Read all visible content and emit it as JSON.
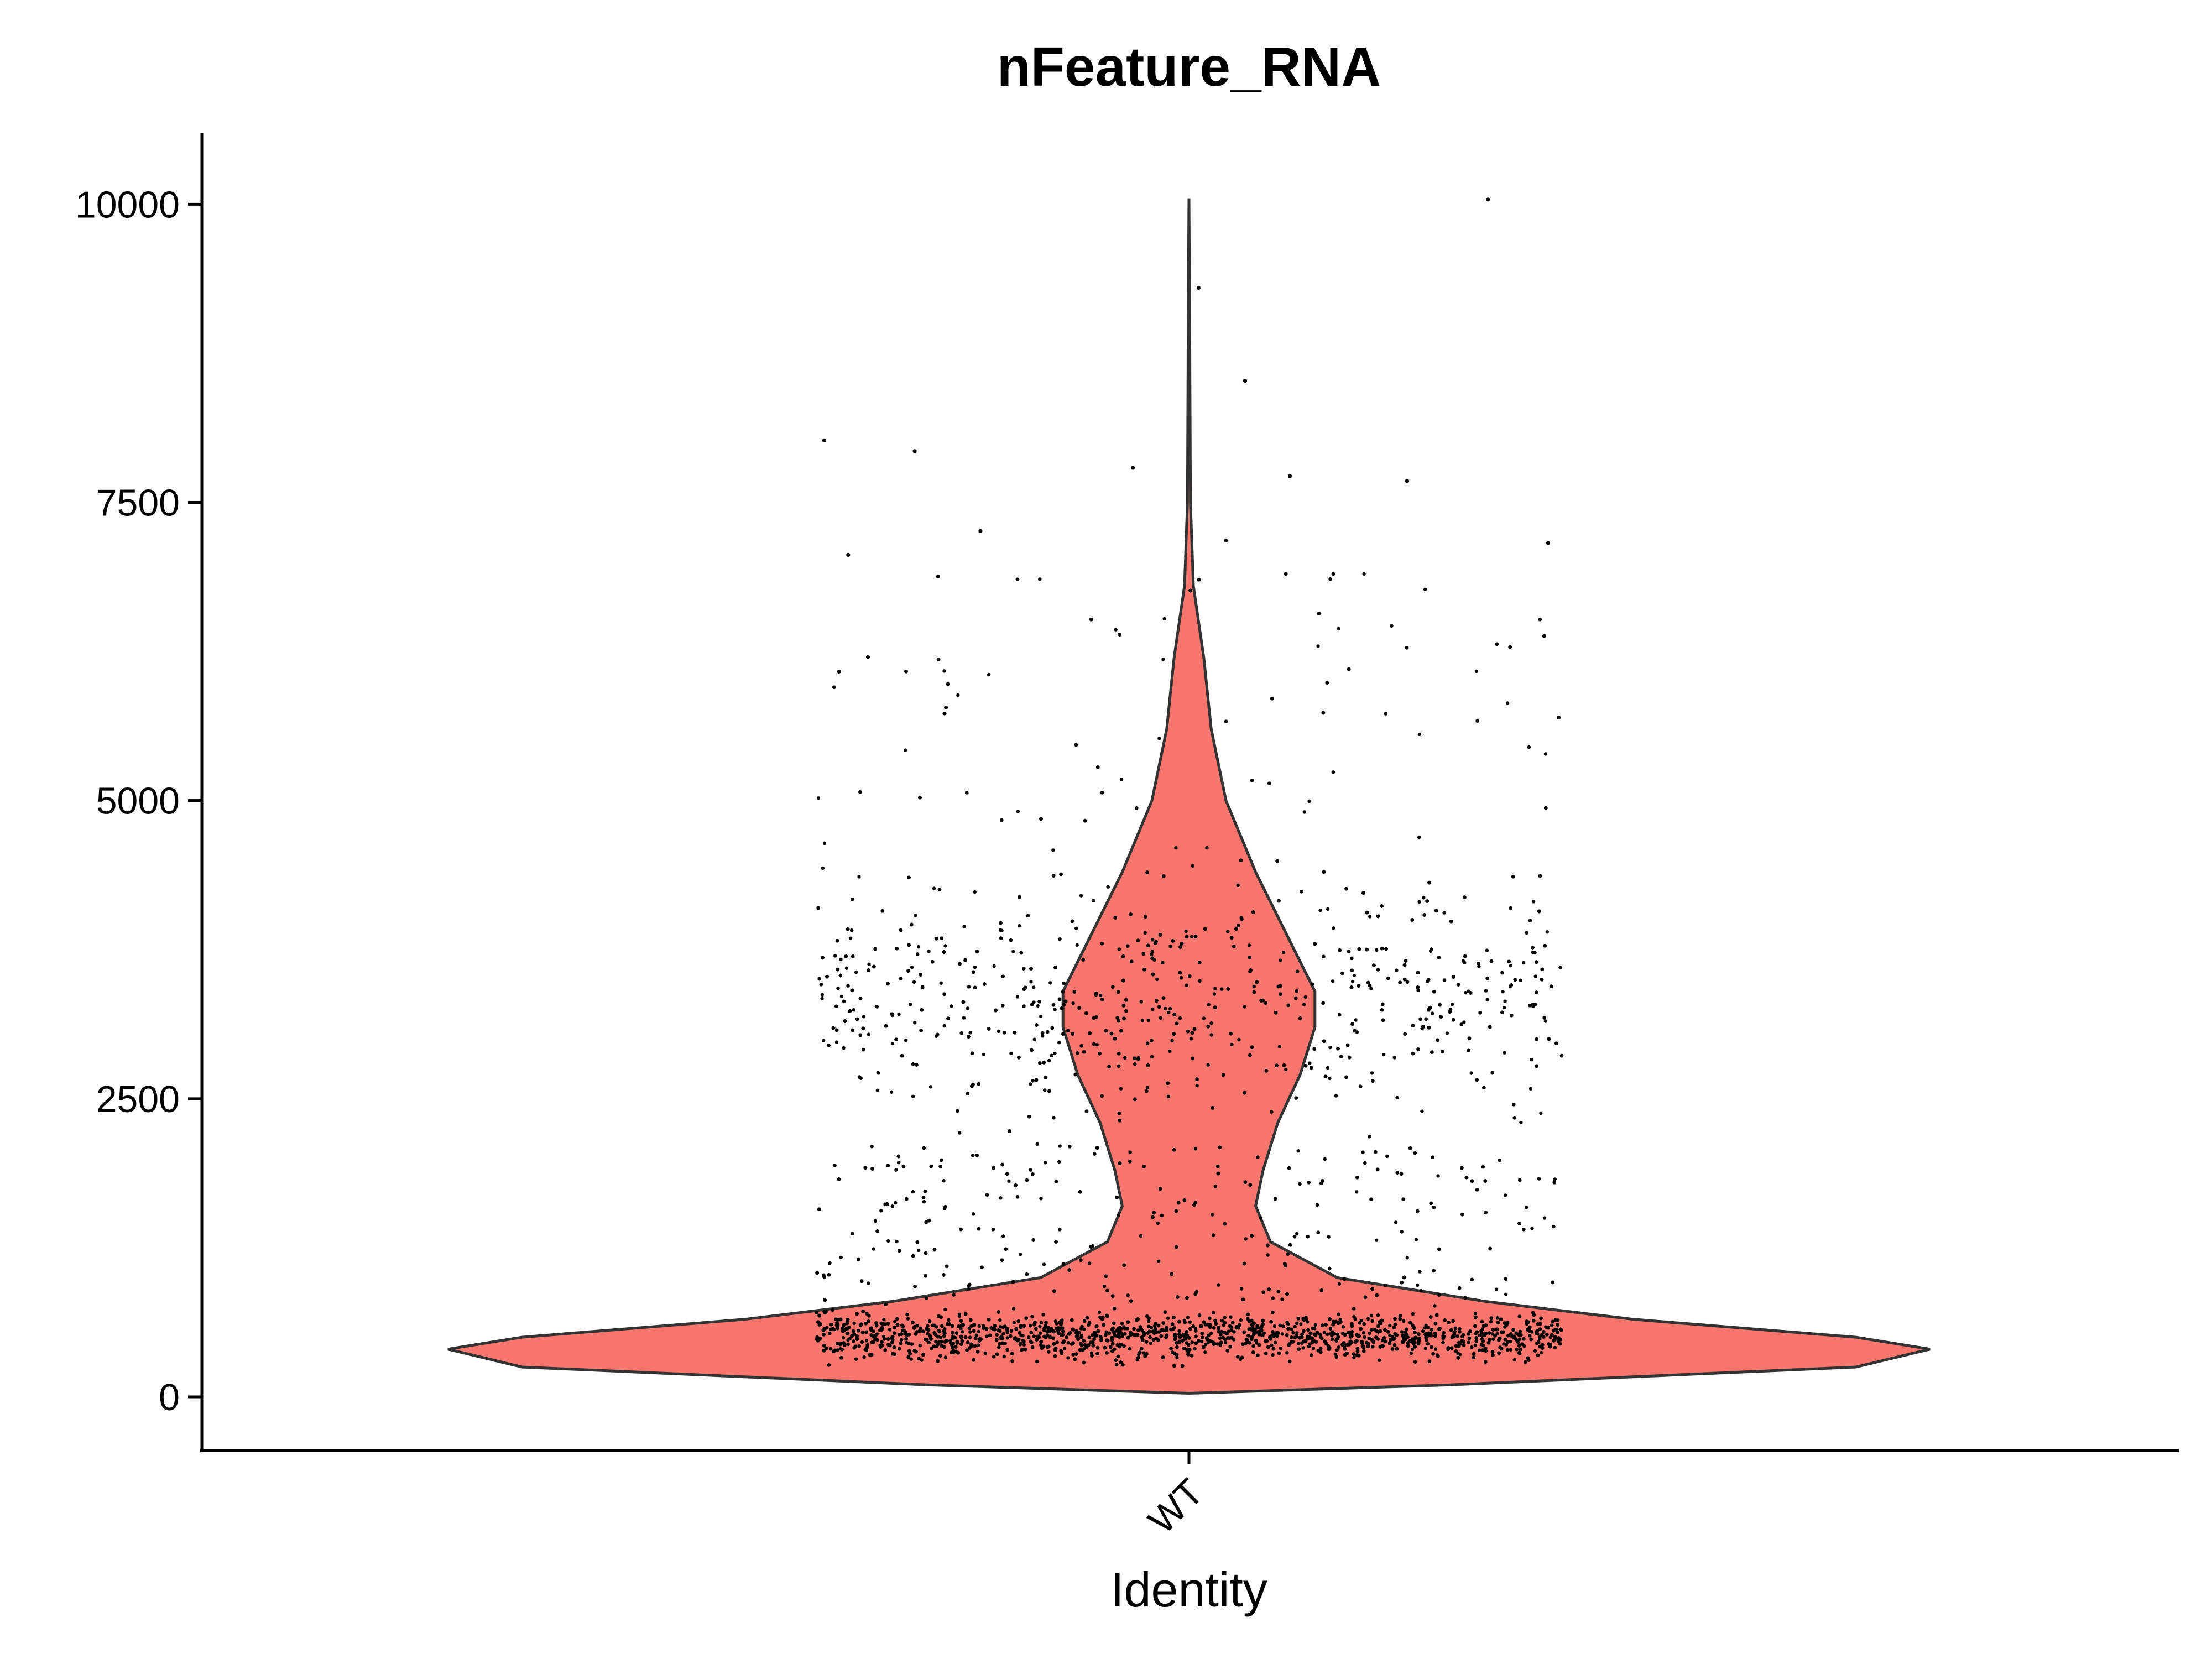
{
  "chart_data": {
    "type": "violin",
    "title": "nFeature_RNA",
    "xlabel": "Identity",
    "ylabel": "",
    "categories": [
      "WT"
    ],
    "ylim": [
      -450,
      10600
    ],
    "yticks": [
      0,
      2500,
      5000,
      7500,
      10000
    ],
    "ytick_labels": [
      "0",
      "2500",
      "5000",
      "7500",
      "10000"
    ],
    "xtick_rotation_deg": 45,
    "grid": false,
    "legend": "none",
    "fill_color": "#F8766D",
    "point_color": "#000000",
    "violin": {
      "category": "WT",
      "min": 30,
      "max": 10050,
      "density_profile": [
        {
          "y": 30,
          "w": 0.0
        },
        {
          "y": 100,
          "w": 0.35
        },
        {
          "y": 250,
          "w": 0.9
        },
        {
          "y": 400,
          "w": 1.0
        },
        {
          "y": 500,
          "w": 0.9
        },
        {
          "y": 650,
          "w": 0.6
        },
        {
          "y": 800,
          "w": 0.4
        },
        {
          "y": 1000,
          "w": 0.2
        },
        {
          "y": 1300,
          "w": 0.11
        },
        {
          "y": 1600,
          "w": 0.09
        },
        {
          "y": 1900,
          "w": 0.1
        },
        {
          "y": 2300,
          "w": 0.12
        },
        {
          "y": 2700,
          "w": 0.15
        },
        {
          "y": 3100,
          "w": 0.17
        },
        {
          "y": 3400,
          "w": 0.17
        },
        {
          "y": 3900,
          "w": 0.13
        },
        {
          "y": 4400,
          "w": 0.09
        },
        {
          "y": 5000,
          "w": 0.05
        },
        {
          "y": 5600,
          "w": 0.03
        },
        {
          "y": 6200,
          "w": 0.02
        },
        {
          "y": 6800,
          "w": 0.006
        },
        {
          "y": 7500,
          "w": 0.002
        },
        {
          "y": 9000,
          "w": 0.001
        },
        {
          "y": 10050,
          "w": 0.0
        }
      ],
      "points": {
        "n_approx": 11000,
        "jitter_half_width": 0.465,
        "outliers": [
          {
            "x": -0.455,
            "y": 8020
          },
          {
            "x": -0.342,
            "y": 7930
          },
          {
            "x": -0.07,
            "y": 7790
          },
          {
            "x": 0.012,
            "y": 9300
          },
          {
            "x": 0.07,
            "y": 8520
          },
          {
            "x": 0.126,
            "y": 7720
          },
          {
            "x": 0.272,
            "y": 7680
          },
          {
            "x": 0.373,
            "y": 10040
          },
          {
            "x": 0.448,
            "y": 7160
          },
          {
            "x": -0.425,
            "y": 7060
          },
          {
            "x": -0.26,
            "y": 7260
          },
          {
            "x": 0.046,
            "y": 7180
          }
        ]
      }
    }
  }
}
